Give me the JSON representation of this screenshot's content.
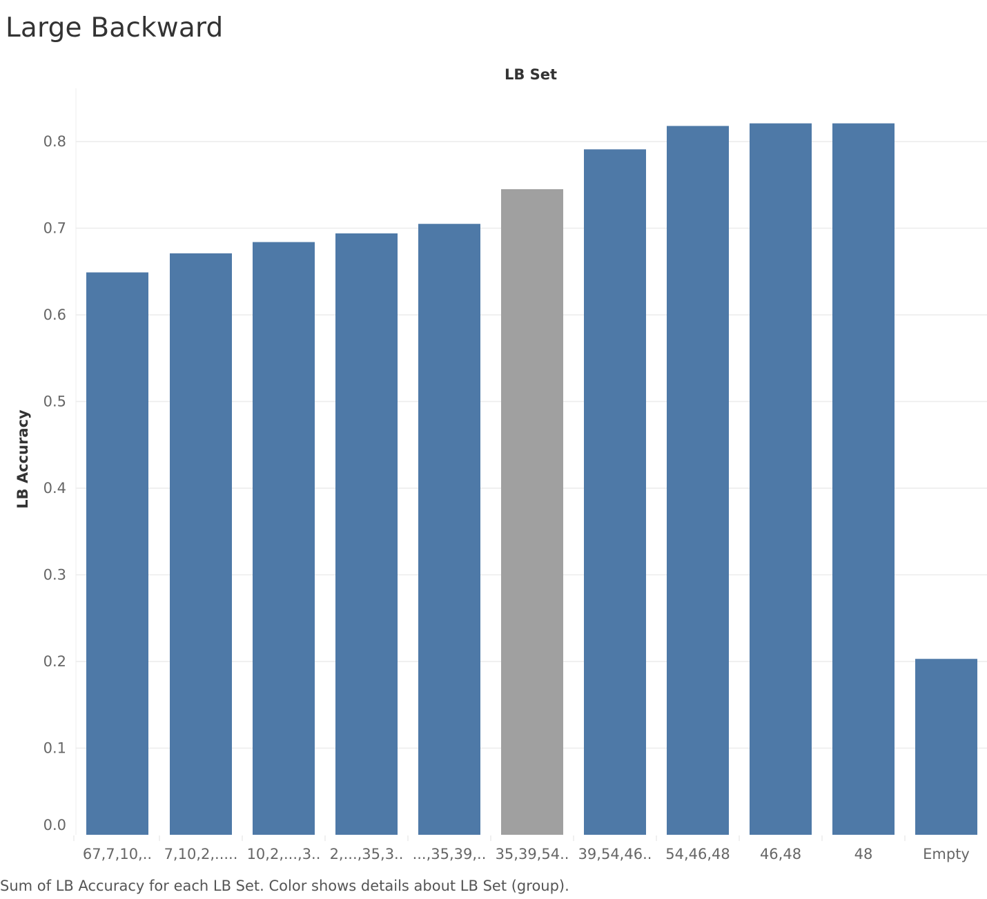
{
  "page": {
    "title": "Large Backward",
    "caption": "Sum of LB Accuracy for each LB Set.  Color shows details about LB Set (group)."
  },
  "chart_data": {
    "type": "bar",
    "xlabel": "LB Set",
    "ylabel": "LB Accuracy",
    "categories": [
      "67,7,10,..",
      "7,10,2,.....",
      "10,2,...,3..",
      "2,...,35,3..",
      "...,35,39,..",
      "35,39,54..",
      "39,54,46..",
      "54,46,48",
      "46,48",
      "48",
      "Empty"
    ],
    "values": [
      0.649,
      0.671,
      0.684,
      0.694,
      0.705,
      0.745,
      0.791,
      0.818,
      0.821,
      0.821,
      0.203
    ],
    "highlight_index": 5,
    "ylim": [
      0,
      0.86
    ],
    "yticks": [
      "0.0",
      "0.1",
      "0.2",
      "0.3",
      "0.4",
      "0.5",
      "0.6",
      "0.7",
      "0.8"
    ],
    "grid": true,
    "legend": "none",
    "colors": {
      "bar": "#4e79a7",
      "highlight": "#a0a0a0",
      "grid": "#ececec"
    }
  }
}
